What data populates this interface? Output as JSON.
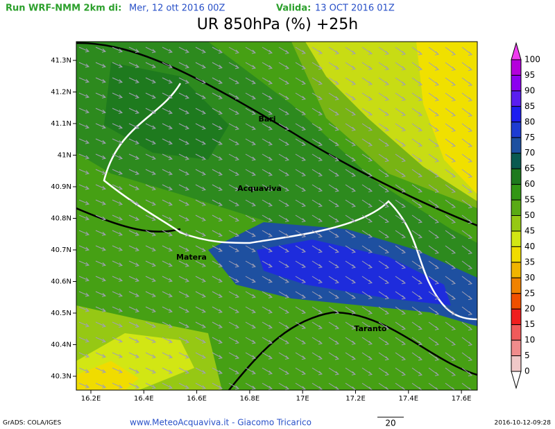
{
  "header": {
    "run_label": "Run WRF-NMM 2km di:",
    "run_date": "Mer, 12 ott 2016 00Z",
    "valid_label": "Valida:",
    "valid_date": "13 OCT 2016 01Z",
    "title": "UR 850hPa (%) +25h"
  },
  "x_labels": [
    "16.2E",
    "16.4E",
    "16.6E",
    "16.8E",
    "17E",
    "17.2E",
    "17.4E",
    "17.6E"
  ],
  "y_labels": [
    "41.3N",
    "41.2N",
    "41.1N",
    "41N",
    "40.9N",
    "40.8N",
    "40.7N",
    "40.6N",
    "40.5N",
    "40.4N",
    "40.3N"
  ],
  "cities": [
    "Bari",
    "Acquaviva",
    "Matera",
    "Taranto"
  ],
  "colorbar": {
    "labels": [
      100,
      95,
      90,
      85,
      80,
      75,
      70,
      65,
      60,
      55,
      50,
      45,
      40,
      35,
      30,
      25,
      20,
      15,
      10,
      5,
      0
    ],
    "colors": [
      "#f03cf0",
      "#b400dc",
      "#8c00f0",
      "#5a1ef0",
      "#1e1ef0",
      "#1e3cd2",
      "#1e50a0",
      "#0a5a50",
      "#1e7a1e",
      "#329614",
      "#5aaa14",
      "#96c814",
      "#d2e614",
      "#f0dc00",
      "#f0b400",
      "#f08200",
      "#f05000",
      "#f01e1e",
      "#f05a5a",
      "#f08c8c",
      "#f0c8c8",
      "#ffffff"
    ]
  },
  "footer": {
    "grads": "GrADS: COLA/IGES",
    "credit": "www.MeteoAcquaviva.it - Giacomo Tricarico",
    "vector_ref": "20",
    "timestamp": "2016-10-12-09:28"
  }
}
